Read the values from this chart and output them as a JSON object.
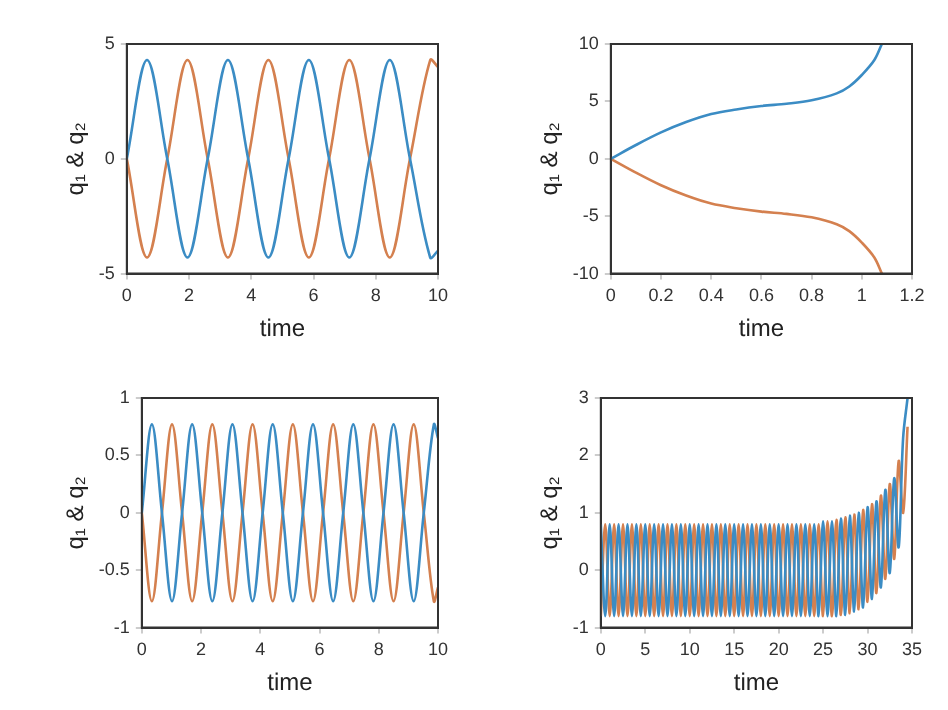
{
  "chart_data": [
    {
      "type": "line",
      "xlabel": "time",
      "ylabel": "q₁ & q₂",
      "xlim": [
        0,
        10
      ],
      "xticks": [
        0,
        2,
        4,
        6,
        8,
        10
      ],
      "ylim": [
        -5,
        5
      ],
      "yticks": [
        -5,
        0,
        5
      ],
      "grid": false,
      "legend": false,
      "x": [
        0,
        0.65,
        1.3,
        1.95,
        2.6,
        3.25,
        3.9,
        4.55,
        5.2,
        5.85,
        6.5,
        7.15,
        7.8,
        8.45,
        9.1,
        9.75,
        10
      ],
      "series": [
        {
          "color": "#3b8cc4",
          "values": [
            0,
            4.3,
            0,
            -4.3,
            0,
            4.3,
            0,
            -4.3,
            0,
            4.3,
            0,
            -4.3,
            0,
            4.3,
            0,
            -4.3,
            -4.0
          ]
        },
        {
          "color": "#d4804f",
          "values": [
            0,
            -4.3,
            0,
            4.3,
            0,
            -4.3,
            0,
            4.3,
            0,
            -4.3,
            0,
            4.3,
            0,
            -4.3,
            0,
            4.3,
            4.0
          ]
        }
      ]
    },
    {
      "type": "line",
      "xlabel": "time",
      "ylabel": "q₁ & q₂",
      "xlim": [
        0,
        1.2
      ],
      "xticks": [
        0,
        0.2,
        0.4,
        0.6,
        0.8,
        1,
        1.2
      ],
      "ylim": [
        -10,
        10
      ],
      "yticks": [
        -10,
        -5,
        0,
        5,
        10
      ],
      "grid": false,
      "legend": false,
      "x": [
        0,
        0.1,
        0.2,
        0.3,
        0.4,
        0.5,
        0.6,
        0.7,
        0.8,
        0.9,
        0.95,
        1.0,
        1.05,
        1.08
      ],
      "series": [
        {
          "color": "#3b8cc4",
          "values": [
            0,
            1.2,
            2.3,
            3.2,
            3.9,
            4.3,
            4.6,
            4.8,
            5.1,
            5.7,
            6.3,
            7.3,
            8.6,
            10
          ]
        },
        {
          "color": "#d4804f",
          "values": [
            0,
            -1.2,
            -2.3,
            -3.2,
            -3.9,
            -4.3,
            -4.6,
            -4.8,
            -5.1,
            -5.7,
            -6.3,
            -7.3,
            -8.6,
            -10
          ]
        }
      ]
    },
    {
      "type": "line",
      "xlabel": "time",
      "ylabel": "q₁ & q₂",
      "xlim": [
        0,
        10
      ],
      "xticks": [
        0,
        2,
        4,
        6,
        8,
        10
      ],
      "ylim": [
        -1,
        1
      ],
      "yticks": [
        -1,
        -0.5,
        0,
        0.5,
        1
      ],
      "grid": false,
      "legend": false,
      "x": [
        0,
        0.34,
        0.68,
        1.02,
        1.36,
        1.7,
        2.04,
        2.38,
        2.72,
        3.06,
        3.4,
        3.74,
        4.08,
        4.42,
        4.76,
        5.1,
        5.44,
        5.78,
        6.12,
        6.46,
        6.8,
        7.14,
        7.48,
        7.82,
        8.16,
        8.5,
        8.84,
        9.18,
        9.52,
        9.86,
        10
      ],
      "series": [
        {
          "color": "#3b8cc4",
          "values": [
            0,
            0.77,
            0,
            -0.77,
            0,
            0.77,
            0,
            -0.77,
            0,
            0.77,
            0,
            -0.77,
            0,
            0.77,
            0,
            -0.77,
            0,
            0.77,
            0,
            -0.77,
            0,
            0.77,
            0,
            -0.77,
            0,
            0.77,
            0,
            -0.77,
            0,
            0.77,
            0.65
          ]
        },
        {
          "color": "#d4804f",
          "values": [
            0,
            -0.77,
            0,
            0.77,
            0,
            -0.77,
            0,
            0.77,
            0,
            -0.77,
            0,
            0.77,
            0,
            -0.77,
            0,
            0.77,
            0,
            -0.77,
            0,
            0.77,
            0,
            -0.77,
            0,
            0.77,
            0,
            -0.77,
            0,
            0.77,
            0,
            -0.77,
            -0.65
          ]
        }
      ]
    },
    {
      "type": "line",
      "xlabel": "time",
      "ylabel": "q₁ & q₂",
      "xlim": [
        0,
        35
      ],
      "xticks": [
        0,
        5,
        10,
        15,
        20,
        25,
        30,
        35
      ],
      "ylim": [
        -1,
        3
      ],
      "yticks": [
        -1,
        0,
        1,
        2,
        3
      ],
      "grid": false,
      "legend": false,
      "x": [
        0,
        0.5,
        1,
        1.5,
        2,
        2.5,
        3,
        3.5,
        4,
        4.5,
        5,
        5.5,
        6,
        6.5,
        7,
        7.5,
        8,
        8.5,
        9,
        9.5,
        10,
        10.5,
        11,
        11.5,
        12,
        12.5,
        13,
        13.5,
        14,
        14.5,
        15,
        15.5,
        16,
        16.5,
        17,
        17.5,
        18,
        18.5,
        19,
        19.5,
        20,
        20.5,
        21,
        21.5,
        22,
        22.5,
        23,
        23.5,
        24,
        24.5,
        25,
        25.5,
        26,
        26.5,
        27,
        27.5,
        28,
        28.5,
        29,
        29.5,
        30,
        30.5,
        31,
        31.5,
        32,
        32.5,
        33,
        33.5,
        34,
        34.5
      ],
      "series": [
        {
          "color": "#3b8cc4",
          "values": [
            0.8,
            -0.8,
            0.8,
            -0.8,
            0.8,
            -0.8,
            0.8,
            -0.8,
            0.8,
            -0.8,
            0.8,
            -0.8,
            0.8,
            -0.8,
            0.8,
            -0.8,
            0.8,
            -0.8,
            0.8,
            -0.8,
            0.8,
            -0.8,
            0.8,
            -0.8,
            0.8,
            -0.8,
            0.8,
            -0.8,
            0.8,
            -0.8,
            0.8,
            -0.8,
            0.8,
            -0.8,
            0.8,
            -0.8,
            0.8,
            -0.8,
            0.8,
            -0.8,
            0.8,
            -0.8,
            0.8,
            -0.8,
            0.8,
            -0.8,
            0.8,
            -0.8,
            0.8,
            -0.8,
            0.85,
            -0.8,
            0.85,
            -0.8,
            0.9,
            -0.78,
            0.95,
            -0.72,
            1.0,
            -0.65,
            1.1,
            -0.5,
            1.2,
            -0.3,
            1.4,
            -0.05,
            1.6,
            0.4,
            2.3,
            3
          ]
        },
        {
          "color": "#d4804f",
          "values": [
            -0.8,
            0.8,
            -0.8,
            0.8,
            -0.8,
            0.8,
            -0.8,
            0.8,
            -0.8,
            0.8,
            -0.8,
            0.8,
            -0.8,
            0.8,
            -0.8,
            0.8,
            -0.8,
            0.8,
            -0.8,
            0.8,
            -0.8,
            0.8,
            -0.8,
            0.8,
            -0.8,
            0.8,
            -0.8,
            0.8,
            -0.8,
            0.8,
            -0.8,
            0.8,
            -0.8,
            0.8,
            -0.8,
            0.8,
            -0.8,
            0.8,
            -0.8,
            0.8,
            -0.8,
            0.8,
            -0.8,
            0.8,
            -0.8,
            0.8,
            -0.8,
            0.8,
            -0.8,
            0.8,
            -0.8,
            0.85,
            -0.8,
            0.88,
            -0.78,
            0.92,
            -0.75,
            0.97,
            -0.68,
            1.05,
            -0.55,
            1.15,
            -0.4,
            1.3,
            -0.15,
            1.5,
            0.2,
            1.9,
            1.0,
            2.5
          ]
        }
      ]
    }
  ]
}
